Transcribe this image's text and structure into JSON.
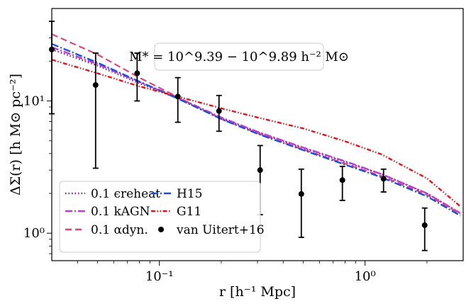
{
  "chart_data": {
    "type": "line",
    "xscale": "log",
    "yscale": "log",
    "xlim": [
      0.03,
      3.0
    ],
    "ylim": [
      0.62,
      50
    ],
    "xlabel": "r [h⁻¹ Mpc]",
    "ylabel": "ΔΣ(r) [h M⊙ pc⁻²]",
    "x_ticks": [
      {
        "value": 0.1,
        "label": "10⁻¹"
      },
      {
        "value": 1.0,
        "label": "10⁰"
      }
    ],
    "y_ticks": [
      {
        "value": 1,
        "label": "10⁰"
      },
      {
        "value": 10,
        "label": "10¹"
      }
    ],
    "annotation": "M* = 10^9.39 − 10^9.89 h⁻² M⊙",
    "legend_position": "bottom-left",
    "series": [
      {
        "name": "0.1 ε_reheat",
        "legend_label": "0.1 ϵreheat",
        "color": "#7b1fa2",
        "style": "dotted",
        "x": [
          0.03,
          0.05,
          0.08,
          0.12,
          0.2,
          0.3,
          0.5,
          0.8,
          1.2,
          2.0,
          2.9
        ],
        "y": [
          24.5,
          18.5,
          13.6,
          10.6,
          7.4,
          5.8,
          4.4,
          3.45,
          2.8,
          2.0,
          1.42
        ]
      },
      {
        "name": "0.1 k_AGN",
        "legend_label": "0.1 kAGN",
        "color": "#bb3fcf",
        "style": "dashdot",
        "x": [
          0.03,
          0.05,
          0.08,
          0.12,
          0.2,
          0.3,
          0.5,
          0.8,
          1.2,
          2.0,
          2.9
        ],
        "y": [
          25.5,
          19.0,
          13.9,
          10.8,
          7.5,
          5.85,
          4.45,
          3.5,
          2.8,
          2.0,
          1.42
        ]
      },
      {
        "name": "0.1 α_dyn.",
        "legend_label": "0.1 αdyn.",
        "color": "#d6487e",
        "style": "dashed",
        "x": [
          0.03,
          0.05,
          0.08,
          0.12,
          0.2,
          0.3,
          0.5,
          0.8,
          1.2,
          2.0,
          2.9
        ],
        "y": [
          32,
          22.5,
          15.0,
          10.9,
          7.3,
          5.7,
          4.3,
          3.35,
          2.7,
          1.95,
          1.4
        ]
      },
      {
        "name": "H15",
        "legend_label": "H15",
        "color": "#1f4fd8",
        "style": "dashdot",
        "x": [
          0.03,
          0.05,
          0.08,
          0.12,
          0.2,
          0.3,
          0.5,
          0.8,
          1.2,
          2.0,
          2.9
        ],
        "y": [
          27,
          19.5,
          14.0,
          10.6,
          7.3,
          5.65,
          4.25,
          3.3,
          2.65,
          1.9,
          1.36
        ]
      },
      {
        "name": "G11",
        "legend_label": "G11",
        "color": "#e3141b",
        "style": "dashdotdot",
        "x": [
          0.03,
          0.05,
          0.08,
          0.12,
          0.2,
          0.3,
          0.5,
          0.8,
          1.2,
          2.0,
          2.9
        ],
        "y": [
          20.5,
          16.2,
          12.9,
          10.9,
          8.8,
          7.5,
          6.2,
          4.95,
          3.95,
          2.6,
          1.6
        ]
      }
    ],
    "observations": {
      "name": "van Uitert+16",
      "legend_label": "van Uitert+16",
      "color": "#000000",
      "points": [
        {
          "x": 0.03,
          "y": 24.5,
          "low": 8.0,
          "high": 40.0
        },
        {
          "x": 0.049,
          "y": 13.2,
          "low": 3.1,
          "high": 23.0
        },
        {
          "x": 0.078,
          "y": 16.2,
          "low": 10.0,
          "high": 23.0
        },
        {
          "x": 0.123,
          "y": 10.8,
          "low": 6.9,
          "high": 15.0
        },
        {
          "x": 0.195,
          "y": 8.4,
          "low": 5.9,
          "high": 11.0
        },
        {
          "x": 0.309,
          "y": 3.0,
          "low": 1.38,
          "high": 4.6
        },
        {
          "x": 0.49,
          "y": 1.98,
          "low": 0.93,
          "high": 3.05
        },
        {
          "x": 0.776,
          "y": 2.52,
          "low": 1.77,
          "high": 3.2
        },
        {
          "x": 1.23,
          "y": 2.58,
          "low": 2.05,
          "high": 3.05
        },
        {
          "x": 1.95,
          "y": 1.15,
          "low": 0.74,
          "high": 1.55
        }
      ]
    }
  }
}
